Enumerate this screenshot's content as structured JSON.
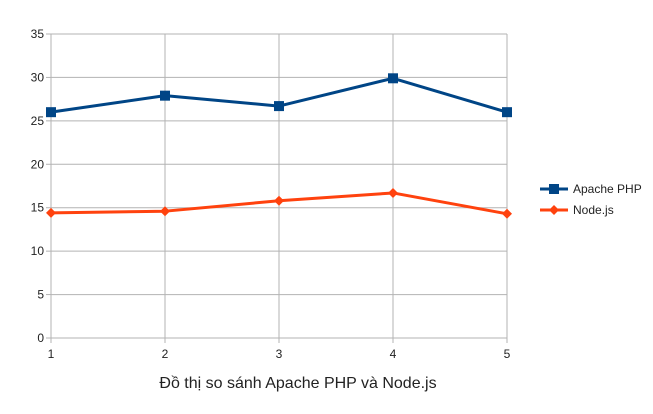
{
  "chart_data": {
    "type": "line",
    "title": "",
    "xlabel": "Đồ thị so sánh Apache PHP và Node.js",
    "ylabel": "",
    "x": [
      1,
      2,
      3,
      4,
      5
    ],
    "x_tick_labels": [
      "1",
      "2",
      "3",
      "4",
      "5"
    ],
    "ylim": [
      0,
      35
    ],
    "y_ticks": [
      0,
      5,
      10,
      15,
      20,
      25,
      30,
      35
    ],
    "y_tick_labels": [
      "0",
      "5",
      "10",
      "15",
      "20",
      "25",
      "30",
      "35"
    ],
    "grid": true,
    "legend_position": "right",
    "series": [
      {
        "name": "Apache PHP",
        "values": [
          26,
          27.9,
          26.7,
          29.9,
          26
        ],
        "color": "#004586",
        "marker": "square"
      },
      {
        "name": "Node.js",
        "values": [
          14.4,
          14.6,
          15.8,
          16.7,
          14.3
        ],
        "color": "#ff420e",
        "marker": "diamond"
      }
    ]
  }
}
